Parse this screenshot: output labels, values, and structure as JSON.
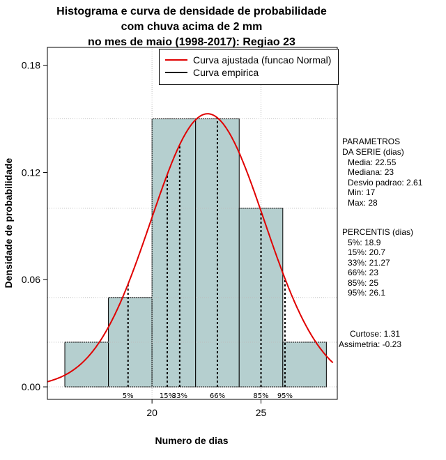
{
  "colors": {
    "bar_fill": "#b5cfcf",
    "fitted_curve": "#e00000",
    "empirical_curve": "#000000",
    "grid": "#bdbdbd"
  },
  "chart_data": {
    "type": "bar",
    "title_lines": [
      "Histograma e curva de densidade de probabilidade",
      "com chuva acima de 2 mm",
      "no mes de maio (1998-2017): Regiao 23"
    ],
    "xlabel": "Numero de dias",
    "ylabel": "Densidade de probabilidade",
    "xlim": [
      15.2,
      28.5
    ],
    "ylim": [
      -0.007,
      0.19
    ],
    "x_ticks": [
      20,
      25
    ],
    "x_tick_labels": [
      "20",
      "25"
    ],
    "y_ticks": [
      0.0,
      0.06,
      0.12,
      0.18
    ],
    "y_tick_labels": [
      "0.00",
      "0.06",
      "0.12",
      "0.18"
    ],
    "grid": true,
    "histogram": {
      "bins": [
        [
          16,
          18
        ],
        [
          18,
          20
        ],
        [
          20,
          22
        ],
        [
          22,
          24
        ],
        [
          24,
          26
        ],
        [
          26,
          28
        ]
      ],
      "density": [
        0.025,
        0.05,
        0.15,
        0.15,
        0.1,
        0.025
      ]
    },
    "series": [
      {
        "name": "Curva ajustada (funcao Normal)",
        "distribution": "normal",
        "mean": 22.55,
        "sd": 2.61
      },
      {
        "name": "Curva empirica"
      }
    ],
    "legend_position": "top-right",
    "percentile_marks": [
      {
        "label": "5%",
        "x": 18.9
      },
      {
        "label": "15%",
        "x": 20.7
      },
      {
        "label": "33%",
        "x": 21.27
      },
      {
        "label": "66%",
        "x": 23
      },
      {
        "label": "85%",
        "x": 25
      },
      {
        "label": "95%",
        "x": 26.1
      }
    ],
    "parameters_title": [
      "PARAMETROS",
      "DA SERIE (dias)"
    ],
    "parameters": [
      "Media: 22.55",
      "Mediana: 23",
      "Desvio padrao: 2.61",
      "Min: 17",
      "Max: 28"
    ],
    "percentiles_title": "PERCENTIS (dias)",
    "percentiles": [
      "5%: 18.9",
      "15%: 20.7",
      "33%: 21.27",
      "66%: 23",
      "85%: 25",
      "95%: 26.1"
    ],
    "shape_stats": [
      "Curtose: 1.31",
      "Assimetria: -0.23"
    ]
  }
}
